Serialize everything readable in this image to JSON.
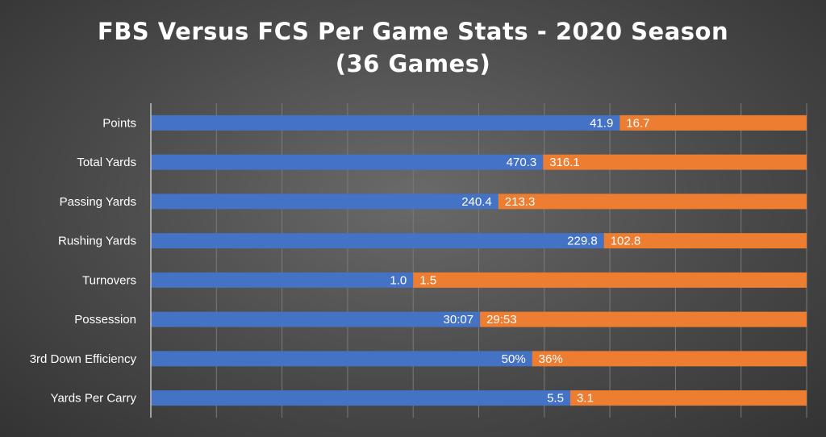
{
  "chart_data": {
    "type": "bar",
    "orientation": "horizontal",
    "stacked": "100%",
    "title_line1": "FBS Versus FCS Per Game Stats - 2020 Season",
    "title_line2": "(36 Games)",
    "categories": [
      "Points",
      "Total Yards",
      "Passing Yards",
      "Rushing Yards",
      "Turnovers",
      "Possession",
      "3rd Down Efficiency",
      "Yards Per Carry"
    ],
    "series": [
      {
        "color": "#4472c4",
        "values": [
          41.9,
          470.3,
          240.4,
          229.8,
          1.0,
          30.117,
          50,
          5.5
        ],
        "labels": [
          "41.9",
          "470.3",
          "240.4",
          "229.8",
          "1.0",
          "30:07",
          "50%",
          "5.5"
        ]
      },
      {
        "color": "#ed7d31",
        "values": [
          16.7,
          316.1,
          213.3,
          102.8,
          1.5,
          29.883,
          36,
          3.1
        ],
        "labels": [
          "16.7",
          "316.1",
          "213.3",
          "102.8",
          "1.5",
          "29:53",
          "36%",
          "3.1"
        ]
      }
    ],
    "xlim": [
      0,
      1
    ],
    "grid": true,
    "legend": "none"
  }
}
